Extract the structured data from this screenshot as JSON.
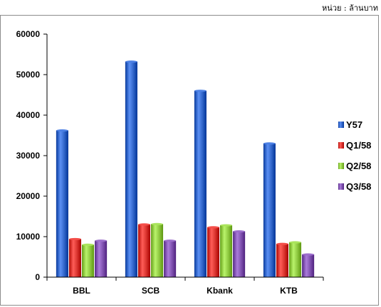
{
  "unit_note": "หน่วย : ล้านบาท",
  "chart_data": {
    "type": "bar",
    "categories": [
      "BBL",
      "SCB",
      "Kbank",
      "KTB"
    ],
    "series": [
      {
        "name": "Y57",
        "values": [
          36200,
          53200,
          46000,
          33000
        ],
        "color": "#2e62c6"
      },
      {
        "name": "Q1/58",
        "values": [
          9400,
          13000,
          12300,
          8200
        ],
        "color": "#d6302b"
      },
      {
        "name": "Q2/58",
        "values": [
          8000,
          13100,
          12800,
          8600
        ],
        "color": "#8cc63e"
      },
      {
        "name": "Q3/58",
        "values": [
          9000,
          9000,
          11300,
          5600
        ],
        "color": "#7d4fad"
      }
    ],
    "yticks": [
      "0",
      "10000",
      "20000",
      "30000",
      "40000",
      "50000",
      "60000"
    ],
    "ylim": [
      0,
      60000
    ],
    "grid": false,
    "legend_position": "right",
    "title": "",
    "xlabel": "",
    "ylabel": ""
  }
}
